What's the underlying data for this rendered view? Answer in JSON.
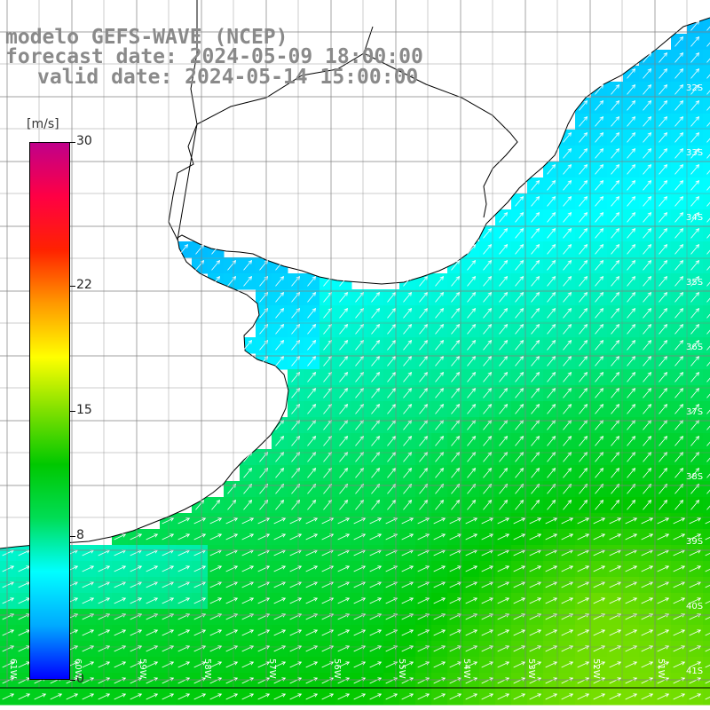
{
  "title": {
    "line1": "modelo GEFS-WAVE (NCEP)",
    "line2": "forecast date: 2024-05-09 18:00:00",
    "line3": "valid date: 2024-05-14 15:00:00"
  },
  "colorbar": {
    "unit": "[m/s]",
    "min": 0,
    "max": 30,
    "ticks": [
      "30",
      "22",
      "15",
      "8",
      "0"
    ],
    "tick_values": [
      30,
      22,
      15,
      8,
      0
    ],
    "colors": [
      "#0000ff",
      "#00aaff",
      "#00ffff",
      "#00dd55",
      "#00c800",
      "#7fe000",
      "#ffff00",
      "#ff9900",
      "#ff2200",
      "#ff0044",
      "#c0008a"
    ]
  },
  "map": {
    "lat_labels": [
      "32S",
      "33S",
      "34S",
      "35S",
      "36S",
      "37S",
      "38S",
      "39S",
      "40S",
      "41S"
    ],
    "lon_labels": [
      "61W",
      "60W",
      "59W",
      "58W",
      "57W",
      "56W",
      "55W",
      "54W",
      "53W",
      "52W",
      "51W"
    ],
    "land_color": "#ffffff",
    "grid_color": "#808080",
    "arrow_color": "#ffffff"
  }
}
